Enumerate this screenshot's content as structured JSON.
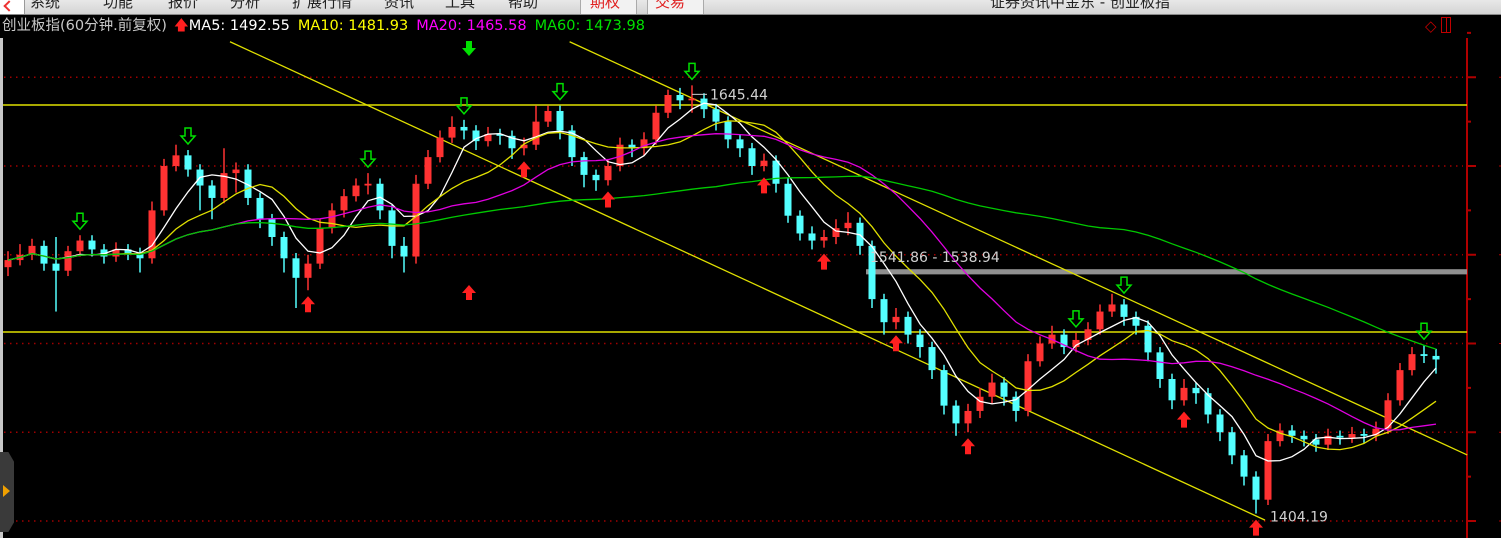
{
  "menubar": {
    "items": [
      "系统",
      "功能",
      "报价",
      "分析",
      "扩展行情",
      "资讯",
      "工具",
      "帮助"
    ],
    "highlight_items": [
      "期权",
      "交易"
    ],
    "window_title": "证券资讯中金东 - 创业板指"
  },
  "header": {
    "title": "创业板指(60分钟.前复权)",
    "ma5": "MA5: 1492.55",
    "ma10": "MA10: 1481.93",
    "ma20": "MA20: 1465.58",
    "ma60": "MA60: 1473.98"
  },
  "colors": {
    "background": "#000000",
    "up": "#ff3232",
    "down": "#54ffff",
    "ma5": "#ffffff",
    "ma10": "#e0e000",
    "ma20": "#e000e0",
    "ma60": "#00c800",
    "grid": "#a00000",
    "axis": "#b00000",
    "trendline": "#e0e000",
    "band": "#909090"
  },
  "chart_data": {
    "type": "candlestick",
    "interval": "60分钟",
    "ylim": [
      1390,
      1670
    ],
    "gridlines": [
      1400,
      1450,
      1500,
      1550,
      1600,
      1650
    ],
    "candles_ohlc": [
      [
        1543,
        1552,
        1538,
        1547
      ],
      [
        1547,
        1556,
        1544,
        1550
      ],
      [
        1550,
        1559,
        1547,
        1555
      ],
      [
        1555,
        1558,
        1541,
        1545
      ],
      [
        1545,
        1560,
        1518,
        1541
      ],
      [
        1541,
        1555,
        1538,
        1552
      ],
      [
        1552,
        1561,
        1549,
        1558
      ],
      [
        1558,
        1561,
        1549,
        1553
      ],
      [
        1553,
        1556,
        1545,
        1549
      ],
      [
        1549,
        1557,
        1546,
        1553
      ],
      [
        1553,
        1556,
        1547,
        1551
      ],
      [
        1551,
        1554,
        1540,
        1548
      ],
      [
        1548,
        1580,
        1545,
        1575
      ],
      [
        1575,
        1604,
        1572,
        1600
      ],
      [
        1600,
        1612,
        1597,
        1606
      ],
      [
        1606,
        1609,
        1594,
        1598
      ],
      [
        1598,
        1601,
        1575,
        1589
      ],
      [
        1589,
        1592,
        1570,
        1582
      ],
      [
        1582,
        1610,
        1579,
        1596
      ],
      [
        1596,
        1602,
        1585,
        1598
      ],
      [
        1598,
        1601,
        1578,
        1582
      ],
      [
        1582,
        1585,
        1565,
        1570
      ],
      [
        1570,
        1573,
        1555,
        1560
      ],
      [
        1560,
        1563,
        1540,
        1548
      ],
      [
        1548,
        1551,
        1520,
        1537
      ],
      [
        1537,
        1550,
        1530,
        1545
      ],
      [
        1545,
        1570,
        1542,
        1565
      ],
      [
        1565,
        1579,
        1562,
        1575
      ],
      [
        1575,
        1587,
        1571,
        1583
      ],
      [
        1583,
        1593,
        1580,
        1589
      ],
      [
        1589,
        1596,
        1584,
        1590
      ],
      [
        1590,
        1593,
        1570,
        1575
      ],
      [
        1575,
        1578,
        1548,
        1555
      ],
      [
        1555,
        1560,
        1540,
        1549
      ],
      [
        1549,
        1595,
        1545,
        1590
      ],
      [
        1590,
        1609,
        1587,
        1605
      ],
      [
        1605,
        1620,
        1602,
        1616
      ],
      [
        1616,
        1628,
        1613,
        1622
      ],
      [
        1622,
        1626,
        1615,
        1620
      ],
      [
        1620,
        1623,
        1609,
        1614
      ],
      [
        1614,
        1622,
        1611,
        1618
      ],
      [
        1618,
        1621,
        1612,
        1617
      ],
      [
        1617,
        1620,
        1604,
        1610
      ],
      [
        1610,
        1616,
        1606,
        1612
      ],
      [
        1612,
        1634,
        1609,
        1625
      ],
      [
        1625,
        1634,
        1622,
        1631
      ],
      [
        1631,
        1634,
        1615,
        1620
      ],
      [
        1620,
        1623,
        1600,
        1605
      ],
      [
        1605,
        1608,
        1588,
        1595
      ],
      [
        1595,
        1598,
        1586,
        1592
      ],
      [
        1592,
        1604,
        1589,
        1600
      ],
      [
        1600,
        1616,
        1597,
        1612
      ],
      [
        1612,
        1615,
        1605,
        1610
      ],
      [
        1610,
        1619,
        1606,
        1615
      ],
      [
        1615,
        1634,
        1612,
        1630
      ],
      [
        1630,
        1643,
        1627,
        1640
      ],
      [
        1640,
        1644,
        1632,
        1637
      ],
      [
        1637,
        1645.44,
        1630,
        1638
      ],
      [
        1638,
        1641,
        1627,
        1632
      ],
      [
        1632,
        1635,
        1620,
        1625
      ],
      [
        1625,
        1628,
        1610,
        1615
      ],
      [
        1615,
        1618,
        1605,
        1610
      ],
      [
        1610,
        1613,
        1595,
        1600
      ],
      [
        1600,
        1607,
        1597,
        1603
      ],
      [
        1603,
        1606,
        1585,
        1590
      ],
      [
        1590,
        1593,
        1568,
        1572
      ],
      [
        1572,
        1575,
        1558,
        1562
      ],
      [
        1562,
        1566,
        1553,
        1558
      ],
      [
        1558,
        1564,
        1554,
        1560
      ],
      [
        1560,
        1570,
        1556,
        1565
      ],
      [
        1565,
        1574,
        1561,
        1568
      ],
      [
        1568,
        1571,
        1550,
        1555
      ],
      [
        1555,
        1558,
        1520,
        1525
      ],
      [
        1525,
        1528,
        1505,
        1512
      ],
      [
        1512,
        1520,
        1508,
        1515
      ],
      [
        1515,
        1518,
        1500,
        1505
      ],
      [
        1505,
        1508,
        1492,
        1498
      ],
      [
        1498,
        1501,
        1480,
        1485
      ],
      [
        1485,
        1488,
        1460,
        1465
      ],
      [
        1465,
        1468,
        1448,
        1455
      ],
      [
        1455,
        1466,
        1450,
        1462
      ],
      [
        1462,
        1475,
        1458,
        1470
      ],
      [
        1470,
        1483,
        1466,
        1478
      ],
      [
        1478,
        1481,
        1465,
        1470
      ],
      [
        1470,
        1473,
        1456,
        1462
      ],
      [
        1462,
        1494,
        1459,
        1490
      ],
      [
        1490,
        1504,
        1487,
        1500
      ],
      [
        1500,
        1510,
        1497,
        1505
      ],
      [
        1505,
        1508,
        1494,
        1498
      ],
      [
        1498,
        1506,
        1495,
        1502
      ],
      [
        1502,
        1512,
        1499,
        1508
      ],
      [
        1508,
        1522,
        1505,
        1518
      ],
      [
        1518,
        1528,
        1515,
        1522
      ],
      [
        1522,
        1525,
        1510,
        1515
      ],
      [
        1515,
        1518,
        1505,
        1510
      ],
      [
        1510,
        1513,
        1490,
        1495
      ],
      [
        1495,
        1498,
        1475,
        1480
      ],
      [
        1480,
        1483,
        1463,
        1468
      ],
      [
        1468,
        1480,
        1465,
        1475
      ],
      [
        1475,
        1478,
        1466,
        1472
      ],
      [
        1472,
        1475,
        1455,
        1460
      ],
      [
        1460,
        1463,
        1445,
        1450
      ],
      [
        1450,
        1453,
        1432,
        1437
      ],
      [
        1437,
        1440,
        1420,
        1425
      ],
      [
        1425,
        1428,
        1404.19,
        1412
      ],
      [
        1412,
        1449,
        1409,
        1445
      ],
      [
        1445,
        1455,
        1442,
        1451
      ],
      [
        1451,
        1454,
        1444,
        1448
      ],
      [
        1448,
        1451,
        1442,
        1446
      ],
      [
        1446,
        1449,
        1439,
        1443
      ],
      [
        1443,
        1452,
        1440,
        1448
      ],
      [
        1448,
        1451,
        1443,
        1447
      ],
      [
        1447,
        1453,
        1444,
        1449
      ],
      [
        1449,
        1452,
        1444,
        1448
      ],
      [
        1448,
        1456,
        1445,
        1452
      ],
      [
        1452,
        1472,
        1449,
        1468
      ],
      [
        1468,
        1489,
        1465,
        1485
      ],
      [
        1485,
        1498,
        1482,
        1494
      ],
      [
        1494,
        1499,
        1489,
        1493
      ],
      [
        1493,
        1497,
        1483,
        1491
      ]
    ],
    "moving_averages": [
      {
        "name": "MA5",
        "period": 5
      },
      {
        "name": "MA10",
        "period": 10
      },
      {
        "name": "MA20",
        "period": 20
      },
      {
        "name": "MA60",
        "period": 60
      }
    ],
    "sell_signals": [
      6,
      15,
      30,
      38,
      46,
      57,
      89,
      93,
      118
    ],
    "buy_signals": [
      25,
      43,
      50,
      63,
      68,
      74,
      80,
      98,
      104
    ],
    "horizontal_lines": [
      1634.4,
      1506.5
    ],
    "price_band": {
      "high": 1541.86,
      "low": 1538.94,
      "label": "1541.86 - 1538.94",
      "from_candle": 71.5
    },
    "trendlines": [
      {
        "from": [
          18.5,
          1670
        ],
        "to": [
          104.75,
          1400.5
        ]
      },
      {
        "from": [
          46.8,
          1670
        ],
        "to": [
          121.6,
          1437.2
        ]
      }
    ],
    "high_label": {
      "candle": 57,
      "value": "1645.44"
    },
    "low_label": {
      "candle": 104,
      "value": "1404.19"
    }
  }
}
